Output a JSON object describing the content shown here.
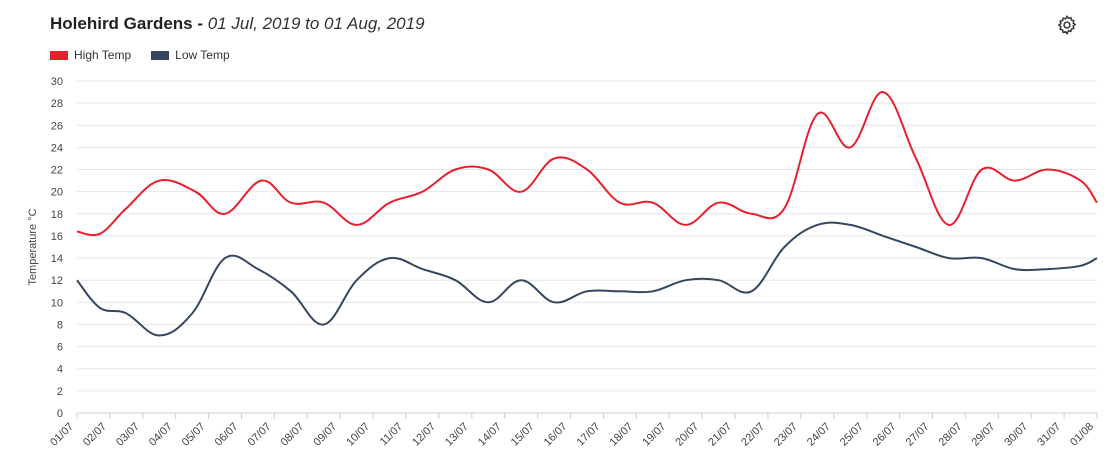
{
  "title": {
    "location": "Holehird Gardens -",
    "range": "01 Jul, 2019 to 01 Aug, 2019"
  },
  "icons": {
    "settings": "gear-icon"
  },
  "colors": {
    "high": "#e8202e",
    "low": "#34475e",
    "grid": "#e6e6e6"
  },
  "chart_data": {
    "type": "line",
    "ylabel": "Temperature °C",
    "ylim": [
      0,
      30
    ],
    "yticks": [
      0,
      2,
      4,
      6,
      8,
      10,
      12,
      14,
      16,
      18,
      20,
      22,
      24,
      26,
      28,
      30
    ],
    "grid": true,
    "legend_position": "top-left",
    "categories": [
      "01/07",
      "02/07",
      "03/07",
      "04/07",
      "05/07",
      "06/07",
      "07/07",
      "08/07",
      "09/07",
      "10/07",
      "11/07",
      "12/07",
      "13/07",
      "14/07",
      "15/07",
      "16/07",
      "17/07",
      "18/07",
      "19/07",
      "20/07",
      "21/07",
      "22/07",
      "23/07",
      "24/07",
      "25/07",
      "26/07",
      "27/07",
      "28/07",
      "29/07",
      "30/07",
      "31/07",
      "01/08"
    ],
    "series": [
      {
        "name": "High Temp",
        "color": "#e8202e",
        "x": [
          0,
          0.7,
          1.5,
          2.5,
          3.6,
          4.5,
          5.6,
          6.5,
          7.5,
          8.5,
          9.5,
          10.5,
          11.5,
          12.5,
          13.5,
          14.5,
          15.5,
          16.5,
          17.5,
          18.5,
          19.5,
          20.5,
          21.5,
          22.5,
          23.5,
          24.5,
          25.5,
          26.5,
          27.5,
          28.5,
          29.5,
          30.5,
          31.0
        ],
        "values": [
          16.4,
          16.2,
          18.5,
          21,
          20,
          18,
          21,
          19,
          19,
          17,
          19,
          20,
          22,
          22,
          20,
          23,
          22,
          19,
          19,
          17,
          19,
          18,
          18.5,
          27,
          24,
          29,
          23,
          17,
          22,
          21,
          22,
          21,
          19
        ]
      },
      {
        "name": "Low Temp",
        "color": "#34475e",
        "x": [
          0,
          0.7,
          1.5,
          2.5,
          3.5,
          4.5,
          5.5,
          6.5,
          7.5,
          8.5,
          9.5,
          10.5,
          11.5,
          12.5,
          13.5,
          14.5,
          15.5,
          16.5,
          17.5,
          18.5,
          19.5,
          20.5,
          21.5,
          22.5,
          23.5,
          24.5,
          25.5,
          26.5,
          27.5,
          28.5,
          29.5,
          30.5,
          31.0
        ],
        "values": [
          12,
          9.5,
          9,
          7,
          9,
          14,
          13,
          11,
          8,
          12,
          14,
          13,
          12,
          10,
          12,
          10,
          11,
          11,
          11,
          12,
          12,
          11,
          15,
          17,
          17,
          16,
          15,
          14,
          14,
          13,
          13,
          13.3,
          14
        ]
      }
    ]
  }
}
